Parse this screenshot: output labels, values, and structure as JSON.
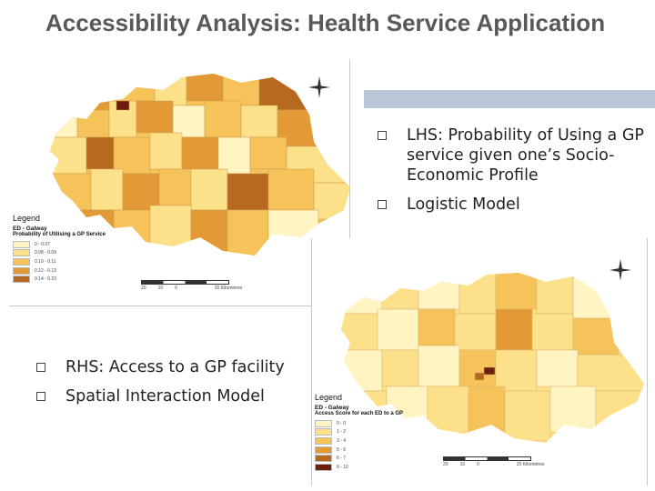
{
  "slide": {
    "title": "Accessibility Analysis: Health Service Application"
  },
  "right_bullets": [
    "LHS: Probability of Using a GP service given one’s Socio-Economic Profile",
    "Logistic Model"
  ],
  "left_bullets": [
    "RHS: Access to a GP facility",
    "Spatial Interaction Model"
  ],
  "map_left": {
    "legend_title": "Legend",
    "layer_name": "ED - Galway",
    "field_name": "Probability of Utilising a GP Service",
    "classes": [
      {
        "label": "0 - 0.07",
        "color": "#fff4c2"
      },
      {
        "label": "0.08 - 0.09",
        "color": "#fde08a"
      },
      {
        "label": "0.10 - 0.11",
        "color": "#f6c35a"
      },
      {
        "label": "0.12 - 0.13",
        "color": "#e39a36"
      },
      {
        "label": "0.14 - 0.23",
        "color": "#b76a1f"
      },
      {
        "label": "",
        "color": "#6e1c0e"
      }
    ],
    "scale_labels": [
      "20",
      "10",
      "0",
      "20 Kilometres"
    ]
  },
  "map_right": {
    "legend_title": "Legend",
    "layer_name": "ED - Galway",
    "field_name": "Access Score for each ED to a GP",
    "classes": [
      {
        "label": "0 - 0",
        "color": "#fff4c2"
      },
      {
        "label": "1 - 2",
        "color": "#fde08a"
      },
      {
        "label": "3 - 4",
        "color": "#f6c35a"
      },
      {
        "label": "5 - 6",
        "color": "#e39a36"
      },
      {
        "label": "6 - 7",
        "color": "#b76a1f"
      },
      {
        "label": "8 - 10",
        "color": "#6e1c0e"
      }
    ],
    "scale_labels": [
      "20",
      "10",
      "0",
      "20 Kilometres"
    ]
  },
  "colors": {
    "title": "#595959",
    "accent_bar": "#b8c6d8",
    "map_light": "#fde6a0",
    "map_dark": "#8a3a12"
  }
}
